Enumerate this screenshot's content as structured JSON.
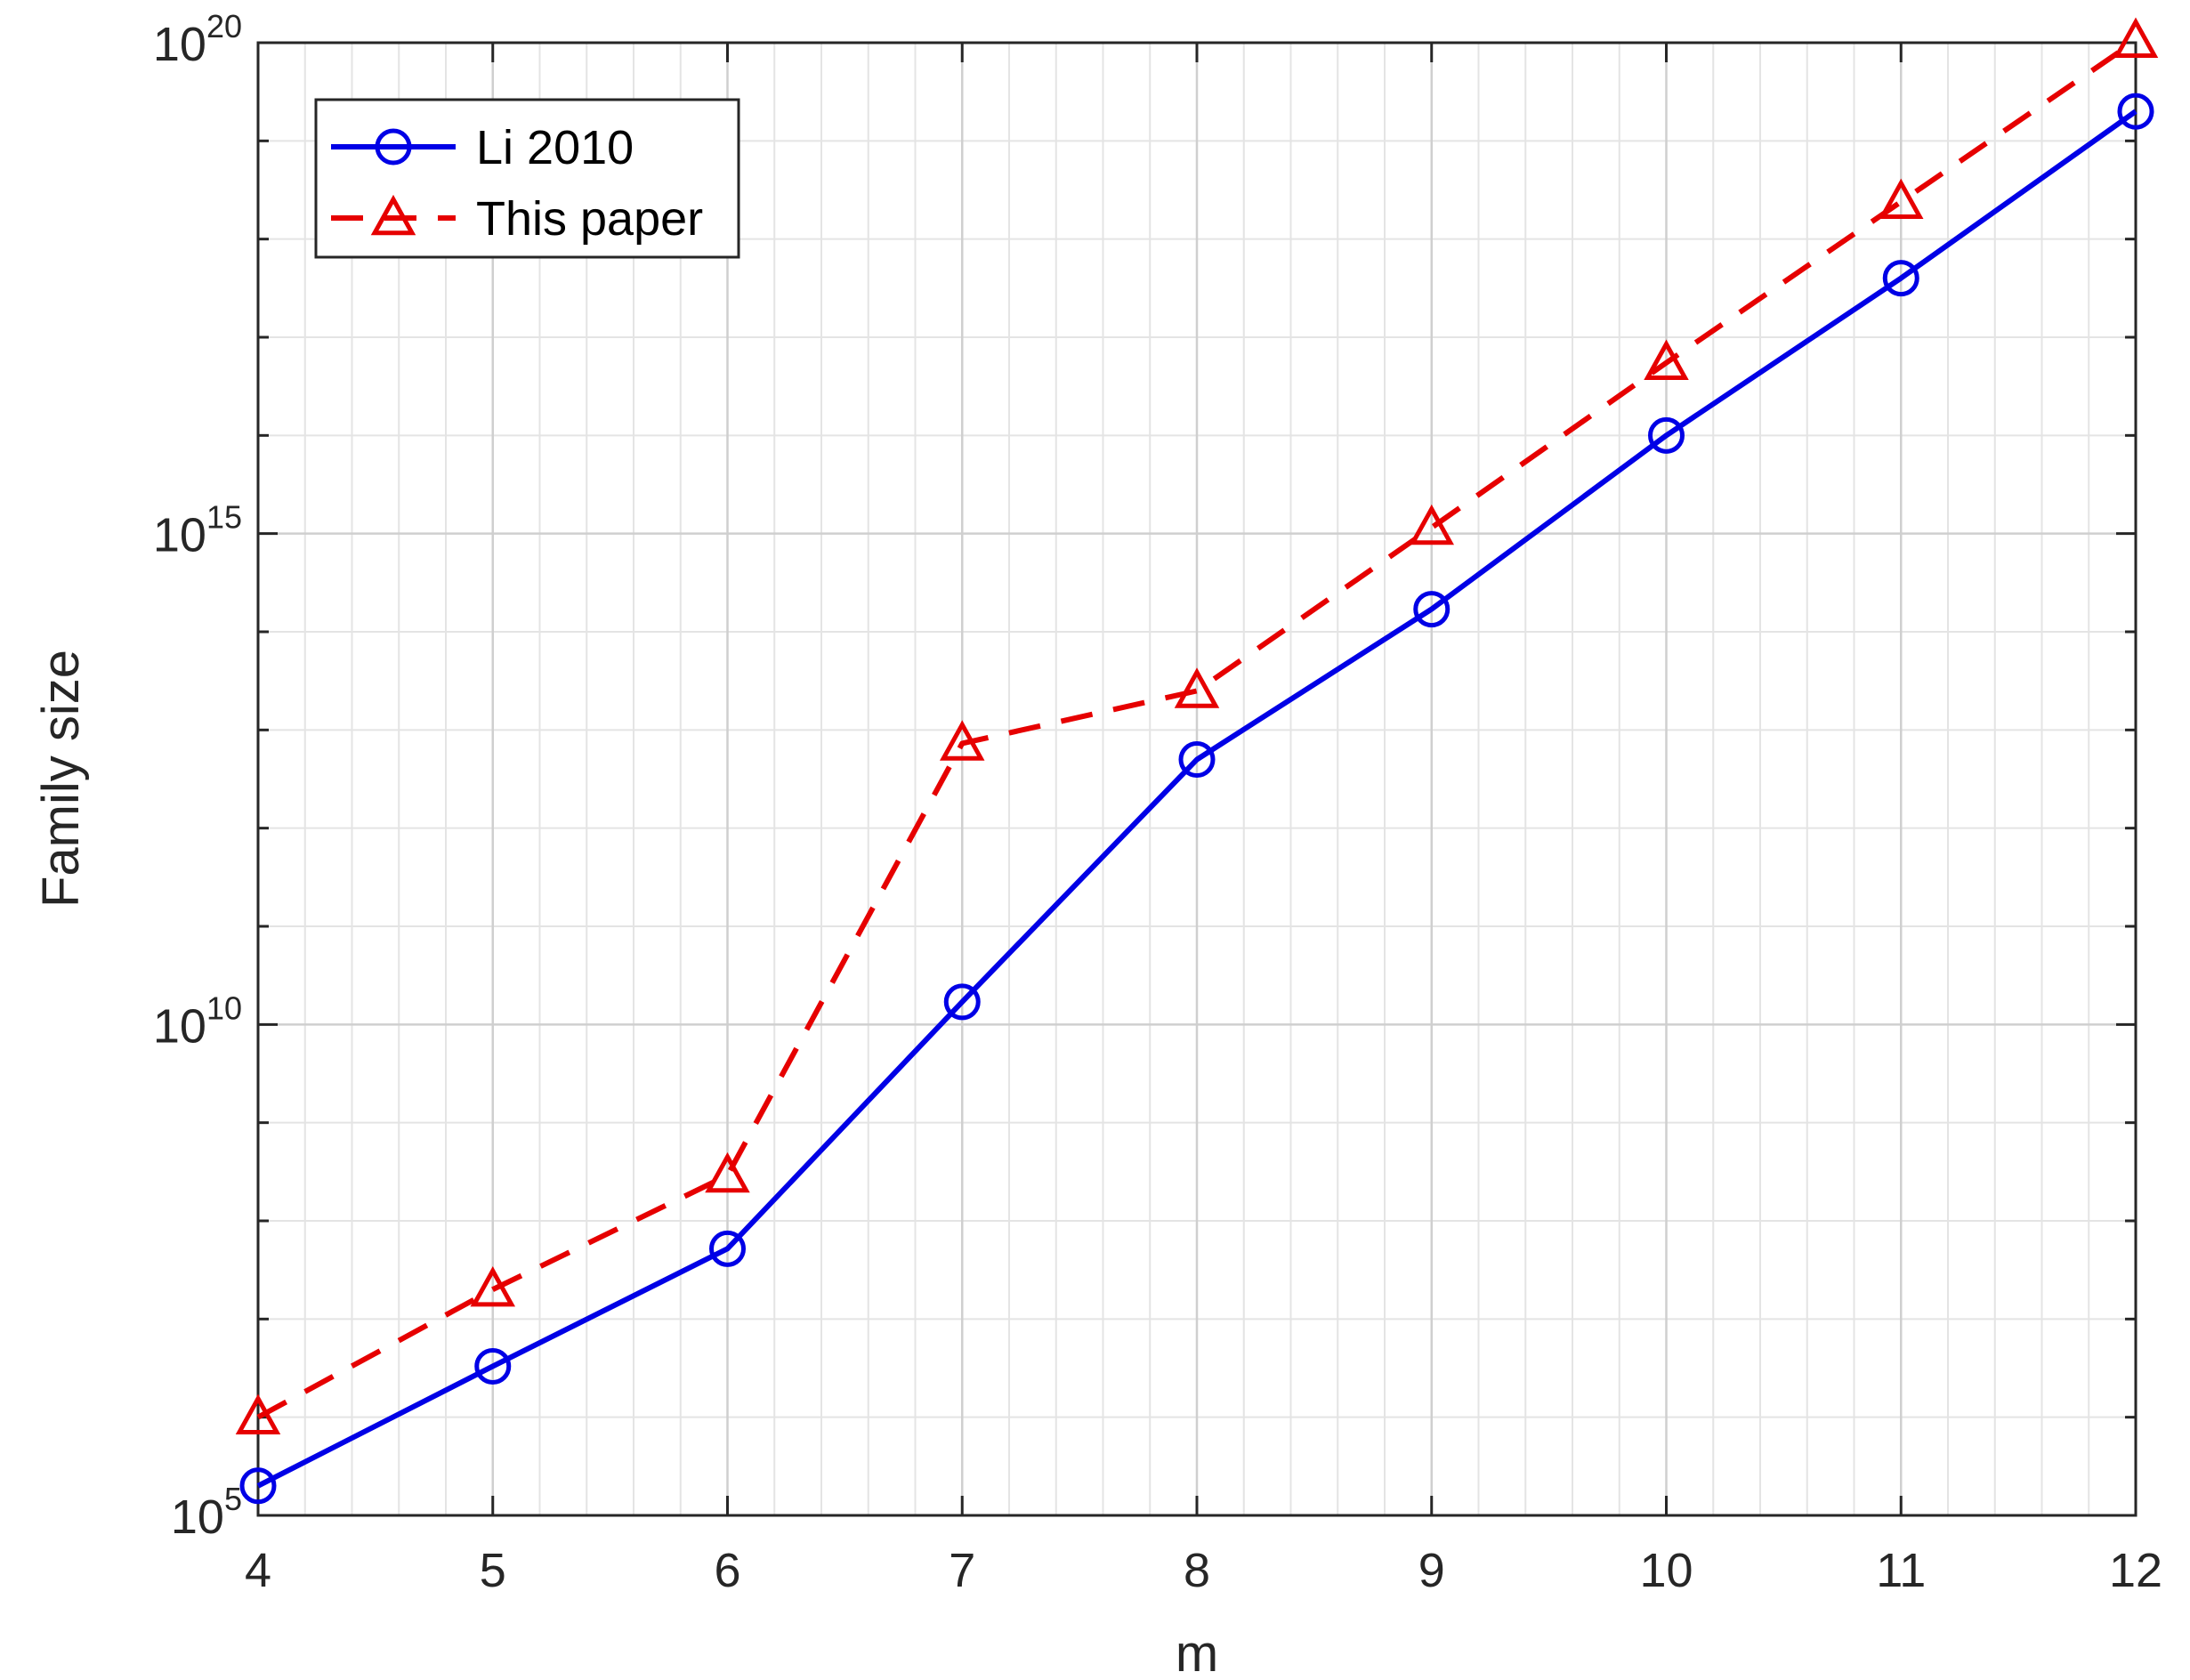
{
  "chart_data": {
    "type": "line",
    "title": "",
    "xlabel": "m",
    "ylabel": "Family size",
    "xlim": [
      4,
      12
    ],
    "ylim": [
      100000,
      100000000000000000000
    ],
    "yscale": "log",
    "grid": true,
    "minor_grid": true,
    "legend_position": "top-left",
    "x_ticks": [
      "4",
      "5",
      "6",
      "7",
      "8",
      "9",
      "10",
      "11",
      "12"
    ],
    "y_ticks": [
      {
        "base": "10",
        "exp": "5"
      },
      {
        "base": "10",
        "exp": "10"
      },
      {
        "base": "10",
        "exp": "15"
      },
      {
        "base": "10",
        "exp": "20"
      }
    ],
    "x": [
      4,
      5,
      6,
      7,
      8,
      9,
      10,
      11,
      12
    ],
    "series": [
      {
        "name": "Li 2010",
        "color": "#0000e6",
        "line_style": "solid",
        "marker": "circle",
        "values": [
          200000,
          3300000,
          52000000,
          17000000000,
          5000000000000,
          170000000000000,
          10000000000000000,
          400000000000000000,
          20000000000000000000
        ]
      },
      {
        "name": "This paper",
        "color": "#e60000",
        "line_style": "dashed",
        "marker": "triangle",
        "values": [
          1000000,
          20000000,
          290000000,
          7300000000000,
          25000000000000,
          1150000000000000,
          55000000000000000,
          2400000000000000000,
          105000000000000000000
        ]
      }
    ]
  }
}
